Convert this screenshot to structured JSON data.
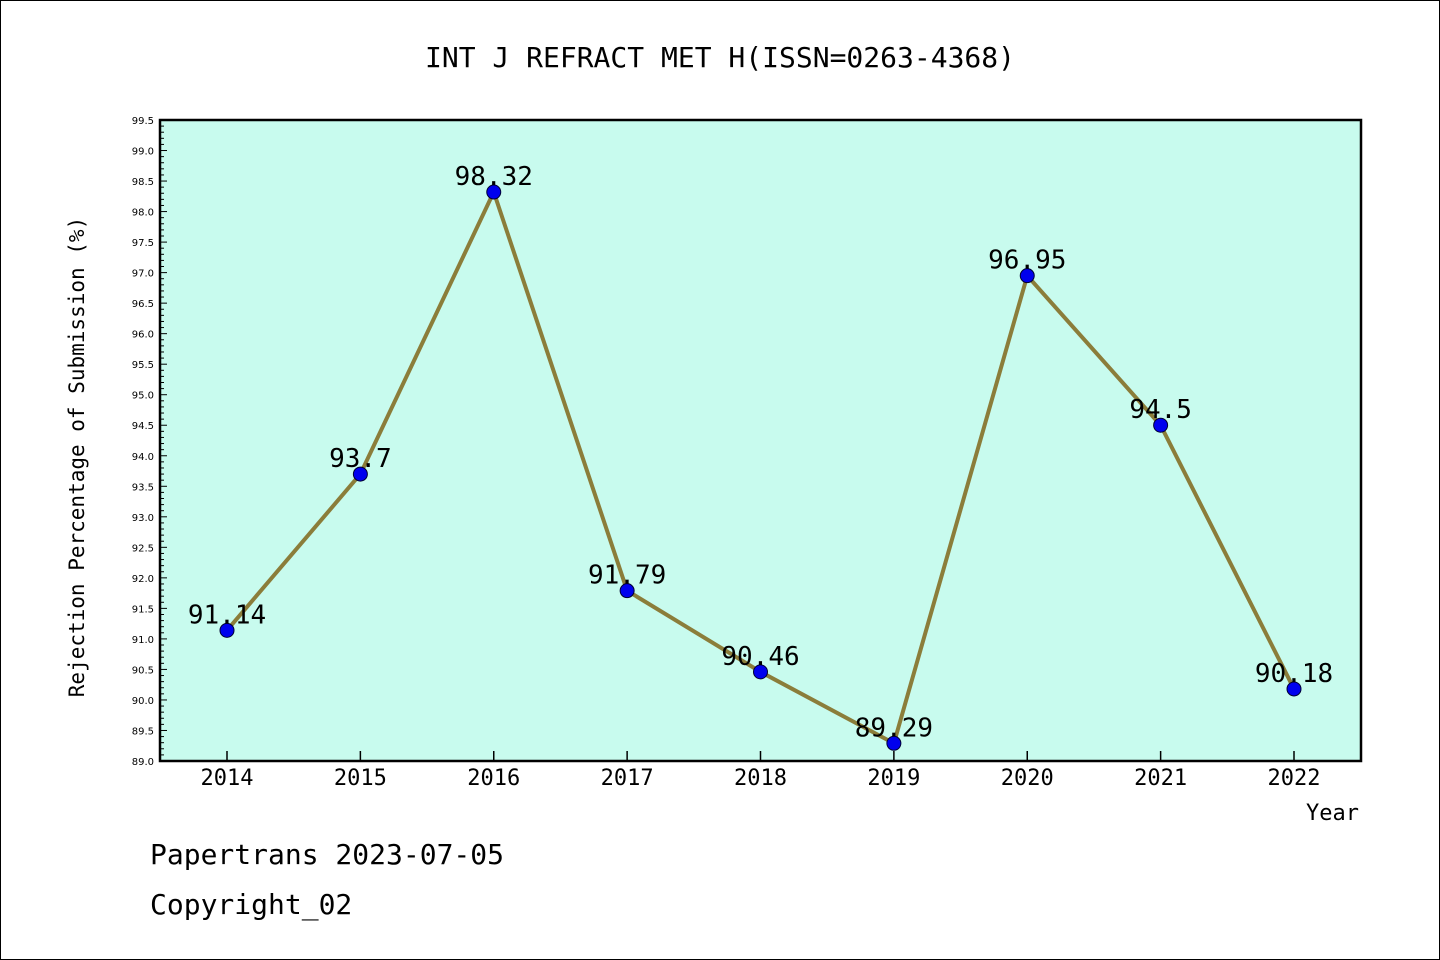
{
  "chart_data": {
    "type": "line",
    "title": "INT J REFRACT MET H(ISSN=0263-4368)",
    "xlabel": "Year",
    "ylabel": "Rejection Percentage of Submission (%)",
    "categories": [
      "2014",
      "2015",
      "2016",
      "2017",
      "2018",
      "2019",
      "2020",
      "2021",
      "2022"
    ],
    "values": [
      91.14,
      93.7,
      98.32,
      91.79,
      90.46,
      89.29,
      96.95,
      94.5,
      90.18
    ],
    "value_labels": [
      "91.14",
      "93.7",
      "98.32",
      "91.79",
      "90.46",
      "89.29",
      "96.95",
      "94.5",
      "90.18"
    ],
    "ylim": [
      89.0,
      99.5
    ],
    "ytick_step": 0.5,
    "grid": false,
    "colors": {
      "plot_background": "#c8fbee",
      "line": "#8b7d3a",
      "marker": "#0000ee"
    }
  },
  "footer": {
    "line1": "Papertrans 2023-07-05",
    "line2": "Copyright_02"
  }
}
